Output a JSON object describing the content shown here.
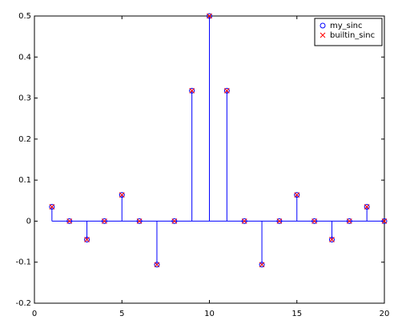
{
  "chart_data": {
    "type": "stem",
    "x": [
      1,
      2,
      3,
      4,
      5,
      6,
      7,
      8,
      9,
      10,
      11,
      12,
      13,
      14,
      15,
      16,
      17,
      18,
      19,
      20
    ],
    "series": [
      {
        "name": "my_sinc",
        "color": "#0000ff",
        "marker": "circle",
        "values": [
          0.035,
          0,
          -0.045,
          0,
          0.064,
          0,
          -0.106,
          0,
          0.318,
          0.5,
          0.318,
          0,
          -0.106,
          0,
          0.064,
          0,
          -0.045,
          0,
          0.035,
          0
        ]
      },
      {
        "name": "builtin_sinc",
        "color": "#ff0000",
        "marker": "cross",
        "values": [
          0.035,
          0,
          -0.045,
          0,
          0.064,
          0,
          -0.106,
          0,
          0.318,
          0.5,
          0.318,
          0,
          -0.106,
          0,
          0.064,
          0,
          -0.045,
          0,
          0.035,
          0
        ]
      }
    ],
    "xlim": [
      0,
      20
    ],
    "xticks": [
      0,
      5,
      10,
      15,
      20
    ],
    "ylim": [
      -0.2,
      0.5
    ],
    "yticks": [
      -0.2,
      -0.1,
      0,
      0.1,
      0.2,
      0.3,
      0.4,
      0.5
    ],
    "grid": false,
    "legend": "top-right"
  }
}
